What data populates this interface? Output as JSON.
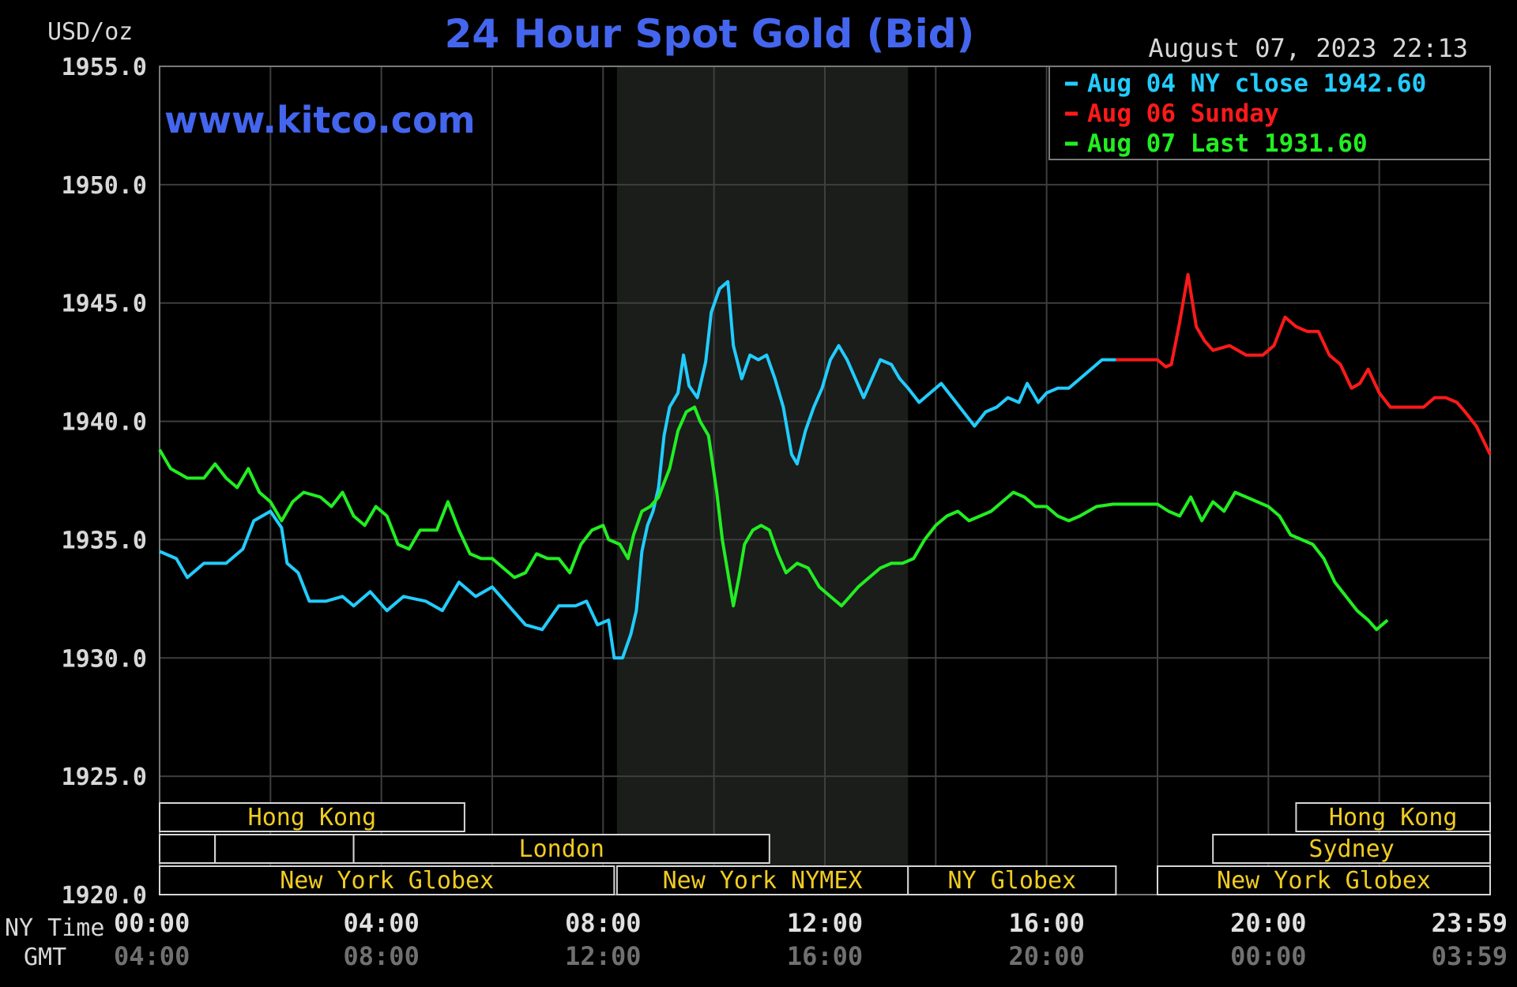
{
  "chart_data": {
    "type": "line",
    "title": "24 Hour Spot Gold (Bid)",
    "ylabel": "USD/oz",
    "timestamp": "August 07, 2023 22:13",
    "watermark": "www.kitco.com",
    "ylim": [
      1920,
      1955
    ],
    "yticks": [
      "1955.0",
      "1950.0",
      "1945.0",
      "1940.0",
      "1935.0",
      "1930.0",
      "1925.0",
      "1920.0"
    ],
    "xlim": [
      0,
      24
    ],
    "xaxis_ny_label": "NY Time",
    "xaxis_gmt_label": "GMT",
    "xticks_ny": [
      "00:00",
      "04:00",
      "08:00",
      "12:00",
      "16:00",
      "20:00",
      "23:59"
    ],
    "xticks_gmt": [
      "04:00",
      "08:00",
      "12:00",
      "16:00",
      "20:00",
      "00:00",
      "03:59"
    ],
    "grid": true,
    "legend_position": "top-right",
    "legend": [
      {
        "text": "Aug 04 NY close 1942.60",
        "color": "#22ccff"
      },
      {
        "text": "Aug 06 Sunday",
        "color": "#ff1a1a"
      },
      {
        "text": "Aug 07 Last 1931.60",
        "color": "#22ee22"
      }
    ],
    "shaded_region": [
      8.25,
      13.5
    ],
    "sessions": [
      {
        "label": "Hong Kong",
        "row": 0,
        "start": 0,
        "end": 5.5
      },
      {
        "label": "",
        "row": 1,
        "start": 0,
        "end": 1.0
      },
      {
        "label": "",
        "row": 1,
        "start": 1.0,
        "end": 3.5
      },
      {
        "label": "London",
        "row": 1,
        "start": 3.5,
        "end": 11.0
      },
      {
        "label": "New York Globex",
        "row": 2,
        "start": 0,
        "end": 8.2
      },
      {
        "label": "New York NYMEX",
        "row": 2,
        "start": 8.25,
        "end": 13.5
      },
      {
        "label": "NY Globex",
        "row": 2,
        "start": 13.5,
        "end": 17.25
      },
      {
        "label": "Hong Kong",
        "row": 0,
        "start": 20.5,
        "end": 24
      },
      {
        "label": "Sydney",
        "row": 1,
        "start": 19.0,
        "end": 24
      },
      {
        "label": "New York Globex",
        "row": 2,
        "start": 18.0,
        "end": 24
      }
    ],
    "series": [
      {
        "name": "Aug 04 NY close 1942.60",
        "color": "#22ccff",
        "points": [
          [
            0,
            1934.5
          ],
          [
            0.3,
            1934.2
          ],
          [
            0.5,
            1933.4
          ],
          [
            0.8,
            1934
          ],
          [
            1.2,
            1934
          ],
          [
            1.5,
            1934.6
          ],
          [
            1.7,
            1935.8
          ],
          [
            2.0,
            1936.2
          ],
          [
            2.2,
            1935.5
          ],
          [
            2.3,
            1934
          ],
          [
            2.5,
            1933.6
          ],
          [
            2.7,
            1932.4
          ],
          [
            3.0,
            1932.4
          ],
          [
            3.3,
            1932.6
          ],
          [
            3.5,
            1932.2
          ],
          [
            3.8,
            1932.8
          ],
          [
            4.1,
            1932.0
          ],
          [
            4.4,
            1932.6
          ],
          [
            4.8,
            1932.4
          ],
          [
            5.1,
            1932.0
          ],
          [
            5.4,
            1933.2
          ],
          [
            5.7,
            1932.6
          ],
          [
            6.0,
            1933.0
          ],
          [
            6.3,
            1932.2
          ],
          [
            6.6,
            1931.4
          ],
          [
            6.9,
            1931.2
          ],
          [
            7.2,
            1932.2
          ],
          [
            7.5,
            1932.2
          ],
          [
            7.7,
            1932.4
          ],
          [
            7.9,
            1931.4
          ],
          [
            8.1,
            1931.6
          ],
          [
            8.2,
            1930.0
          ],
          [
            8.35,
            1930.0
          ],
          [
            8.5,
            1931.0
          ],
          [
            8.6,
            1932.0
          ],
          [
            8.7,
            1934.5
          ],
          [
            8.8,
            1935.6
          ],
          [
            8.9,
            1936.2
          ],
          [
            9.0,
            1937.2
          ],
          [
            9.1,
            1939.4
          ],
          [
            9.2,
            1940.6
          ],
          [
            9.35,
            1941.2
          ],
          [
            9.45,
            1942.8
          ],
          [
            9.55,
            1941.5
          ],
          [
            9.7,
            1941.0
          ],
          [
            9.85,
            1942.5
          ],
          [
            9.95,
            1944.6
          ],
          [
            10.1,
            1945.6
          ],
          [
            10.25,
            1945.9
          ],
          [
            10.35,
            1943.2
          ],
          [
            10.5,
            1941.8
          ],
          [
            10.65,
            1942.8
          ],
          [
            10.8,
            1942.6
          ],
          [
            10.95,
            1942.8
          ],
          [
            11.1,
            1941.8
          ],
          [
            11.25,
            1940.6
          ],
          [
            11.4,
            1938.6
          ],
          [
            11.5,
            1938.2
          ],
          [
            11.65,
            1939.6
          ],
          [
            11.8,
            1940.6
          ],
          [
            11.95,
            1941.4
          ],
          [
            12.1,
            1942.6
          ],
          [
            12.25,
            1943.2
          ],
          [
            12.4,
            1942.6
          ],
          [
            12.55,
            1941.8
          ],
          [
            12.7,
            1941.0
          ],
          [
            12.85,
            1941.8
          ],
          [
            13.0,
            1942.6
          ],
          [
            13.2,
            1942.4
          ],
          [
            13.35,
            1941.8
          ],
          [
            13.5,
            1941.4
          ],
          [
            13.7,
            1940.8
          ],
          [
            13.9,
            1941.2
          ],
          [
            14.1,
            1941.6
          ],
          [
            14.3,
            1941.0
          ],
          [
            14.5,
            1940.4
          ],
          [
            14.7,
            1939.8
          ],
          [
            14.9,
            1940.4
          ],
          [
            15.1,
            1940.6
          ],
          [
            15.3,
            1941.0
          ],
          [
            15.5,
            1940.8
          ],
          [
            15.65,
            1941.6
          ],
          [
            15.85,
            1940.8
          ],
          [
            16.0,
            1941.2
          ],
          [
            16.2,
            1941.4
          ],
          [
            16.4,
            1941.4
          ],
          [
            16.6,
            1941.8
          ],
          [
            16.8,
            1942.2
          ],
          [
            17.0,
            1942.6
          ],
          [
            17.25,
            1942.6
          ]
        ]
      },
      {
        "name": "Aug 06 Sunday",
        "color": "#ff1a1a",
        "points": [
          [
            17.25,
            1942.6
          ],
          [
            17.6,
            1942.6
          ],
          [
            18.0,
            1942.6
          ],
          [
            18.15,
            1942.3
          ],
          [
            18.25,
            1942.4
          ],
          [
            18.4,
            1944.2
          ],
          [
            18.55,
            1946.2
          ],
          [
            18.7,
            1944.0
          ],
          [
            18.85,
            1943.4
          ],
          [
            19.0,
            1943.0
          ],
          [
            19.3,
            1943.2
          ],
          [
            19.6,
            1942.8
          ],
          [
            19.9,
            1942.8
          ],
          [
            20.1,
            1943.2
          ],
          [
            20.3,
            1944.4
          ],
          [
            20.5,
            1944.0
          ],
          [
            20.7,
            1943.8
          ],
          [
            20.9,
            1943.8
          ],
          [
            21.1,
            1942.8
          ],
          [
            21.3,
            1942.4
          ],
          [
            21.5,
            1941.4
          ],
          [
            21.65,
            1941.6
          ],
          [
            21.8,
            1942.2
          ],
          [
            22.0,
            1941.2
          ],
          [
            22.2,
            1940.6
          ],
          [
            22.5,
            1940.6
          ],
          [
            22.8,
            1940.6
          ],
          [
            23.0,
            1941.0
          ],
          [
            23.2,
            1941.0
          ],
          [
            23.4,
            1940.8
          ],
          [
            23.55,
            1940.4
          ],
          [
            23.75,
            1939.8
          ],
          [
            24,
            1938.6
          ]
        ]
      },
      {
        "name": "Aug 07 Last 1931.60",
        "color": "#22ee22",
        "points": [
          [
            0,
            1938.8
          ],
          [
            0.2,
            1938.0
          ],
          [
            0.5,
            1937.6
          ],
          [
            0.8,
            1937.6
          ],
          [
            1.0,
            1938.2
          ],
          [
            1.2,
            1937.6
          ],
          [
            1.4,
            1937.2
          ],
          [
            1.6,
            1938.0
          ],
          [
            1.8,
            1937.0
          ],
          [
            2.0,
            1936.6
          ],
          [
            2.2,
            1935.8
          ],
          [
            2.4,
            1936.6
          ],
          [
            2.6,
            1937.0
          ],
          [
            2.9,
            1936.8
          ],
          [
            3.1,
            1936.4
          ],
          [
            3.3,
            1937.0
          ],
          [
            3.5,
            1936.0
          ],
          [
            3.7,
            1935.6
          ],
          [
            3.9,
            1936.4
          ],
          [
            4.1,
            1936.0
          ],
          [
            4.3,
            1934.8
          ],
          [
            4.5,
            1934.6
          ],
          [
            4.7,
            1935.4
          ],
          [
            5.0,
            1935.4
          ],
          [
            5.2,
            1936.6
          ],
          [
            5.4,
            1935.4
          ],
          [
            5.6,
            1934.4
          ],
          [
            5.8,
            1934.2
          ],
          [
            6.0,
            1934.2
          ],
          [
            6.2,
            1933.8
          ],
          [
            6.4,
            1933.4
          ],
          [
            6.6,
            1933.6
          ],
          [
            6.8,
            1934.4
          ],
          [
            7.0,
            1934.2
          ],
          [
            7.2,
            1934.2
          ],
          [
            7.4,
            1933.6
          ],
          [
            7.6,
            1934.8
          ],
          [
            7.8,
            1935.4
          ],
          [
            8.0,
            1935.6
          ],
          [
            8.1,
            1935.0
          ],
          [
            8.3,
            1934.8
          ],
          [
            8.45,
            1934.2
          ],
          [
            8.55,
            1935.2
          ],
          [
            8.7,
            1936.2
          ],
          [
            8.85,
            1936.4
          ],
          [
            9.0,
            1936.8
          ],
          [
            9.2,
            1938.0
          ],
          [
            9.35,
            1939.6
          ],
          [
            9.5,
            1940.4
          ],
          [
            9.65,
            1940.6
          ],
          [
            9.75,
            1940.0
          ],
          [
            9.9,
            1939.4
          ],
          [
            10.05,
            1937.0
          ],
          [
            10.15,
            1935.0
          ],
          [
            10.25,
            1933.6
          ],
          [
            10.35,
            1932.2
          ],
          [
            10.45,
            1933.4
          ],
          [
            10.55,
            1934.8
          ],
          [
            10.7,
            1935.4
          ],
          [
            10.85,
            1935.6
          ],
          [
            11.0,
            1935.4
          ],
          [
            11.15,
            1934.4
          ],
          [
            11.3,
            1933.6
          ],
          [
            11.5,
            1934.0
          ],
          [
            11.7,
            1933.8
          ],
          [
            11.9,
            1933.0
          ],
          [
            12.1,
            1932.6
          ],
          [
            12.3,
            1932.2
          ],
          [
            12.45,
            1932.6
          ],
          [
            12.6,
            1933.0
          ],
          [
            12.8,
            1933.4
          ],
          [
            13.0,
            1933.8
          ],
          [
            13.2,
            1934.0
          ],
          [
            13.4,
            1934.0
          ],
          [
            13.6,
            1934.2
          ],
          [
            13.8,
            1935.0
          ],
          [
            14.0,
            1935.6
          ],
          [
            14.2,
            1936.0
          ],
          [
            14.4,
            1936.2
          ],
          [
            14.6,
            1935.8
          ],
          [
            14.8,
            1936.0
          ],
          [
            15.0,
            1936.2
          ],
          [
            15.2,
            1936.6
          ],
          [
            15.4,
            1937.0
          ],
          [
            15.6,
            1936.8
          ],
          [
            15.8,
            1936.4
          ],
          [
            16.0,
            1936.4
          ],
          [
            16.2,
            1936.0
          ],
          [
            16.4,
            1935.8
          ],
          [
            16.6,
            1936.0
          ],
          [
            16.9,
            1936.4
          ],
          [
            17.2,
            1936.5
          ],
          [
            17.6,
            1936.5
          ],
          [
            18.0,
            1936.5
          ],
          [
            18.2,
            1936.2
          ],
          [
            18.4,
            1936.0
          ],
          [
            18.6,
            1936.8
          ],
          [
            18.8,
            1935.8
          ],
          [
            19.0,
            1936.6
          ],
          [
            19.2,
            1936.2
          ],
          [
            19.4,
            1937.0
          ],
          [
            19.6,
            1936.8
          ],
          [
            19.8,
            1936.6
          ],
          [
            20.0,
            1936.4
          ],
          [
            20.2,
            1936.0
          ],
          [
            20.4,
            1935.2
          ],
          [
            20.6,
            1935.0
          ],
          [
            20.8,
            1934.8
          ],
          [
            21.0,
            1934.2
          ],
          [
            21.2,
            1933.2
          ],
          [
            21.4,
            1932.6
          ],
          [
            21.6,
            1932.0
          ],
          [
            21.8,
            1931.6
          ],
          [
            21.95,
            1931.2
          ],
          [
            22.15,
            1931.6
          ]
        ]
      }
    ]
  }
}
